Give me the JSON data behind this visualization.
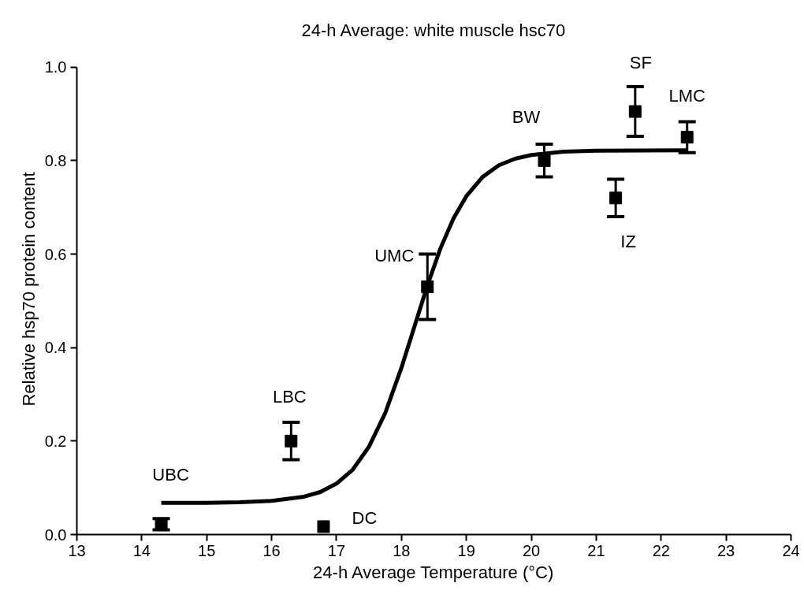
{
  "chart_data": {
    "type": "scatter",
    "title": "24-h Average: white muscle hsc70",
    "xlabel": "24-h Average Temperature (°C)",
    "ylabel": "Relative hsp70 protein content",
    "xlim": [
      13,
      24
    ],
    "xticks": [
      13,
      14,
      15,
      16,
      17,
      18,
      19,
      20,
      21,
      22,
      23,
      24
    ],
    "ylim": [
      0,
      1.0
    ],
    "yticks": [
      {
        "value": 0,
        "label": "0.0"
      },
      {
        "value": 0.2,
        "label": "0.2"
      },
      {
        "value": 0.4,
        "label": "0.4"
      },
      {
        "value": 0.6,
        "label": "0.6"
      },
      {
        "value": 0.8,
        "label": "0.8"
      },
      {
        "value": 1.0,
        "label": "1.0"
      }
    ],
    "grid": false,
    "marker": "square",
    "series": [
      {
        "color": "#000000",
        "x": [
          14.3,
          16.3,
          16.8,
          18.4,
          20.2,
          21.3,
          21.6,
          22.4
        ],
        "values": [
          0.022,
          0.2,
          0.017,
          0.53,
          0.8,
          0.72,
          0.905,
          0.85
        ],
        "errors": [
          0.012,
          0.04,
          null,
          0.07,
          0.035,
          0.04,
          0.053,
          0.033
        ]
      },
      {
        "type": "line",
        "color": "#000000",
        "line_style": "solid",
        "marker": "none",
        "x": [
          14.3,
          15,
          15.5,
          16,
          16.5,
          16.75,
          17,
          17.25,
          17.5,
          17.75,
          18,
          18.2,
          18.4,
          18.6,
          18.8,
          19,
          19.25,
          19.5,
          19.75,
          20,
          20.5,
          21,
          22.4
        ],
        "values": [
          0.068,
          0.068,
          0.069,
          0.072,
          0.081,
          0.091,
          0.109,
          0.139,
          0.188,
          0.26,
          0.357,
          0.445,
          0.533,
          0.612,
          0.676,
          0.724,
          0.765,
          0.79,
          0.804,
          0.812,
          0.819,
          0.821,
          0.822
        ]
      }
    ],
    "annotations": [
      {
        "text": "UBC",
        "x": 14.3,
        "y": 0.022
      },
      {
        "text": "LBC",
        "x": 16.3,
        "y": 0.2
      },
      {
        "text": "DC",
        "x": 16.8,
        "y": 0.017
      },
      {
        "text": "UMC",
        "x": 18.4,
        "y": 0.53
      },
      {
        "text": "BW",
        "x": 20.2,
        "y": 0.8
      },
      {
        "text": "IZ",
        "x": 21.3,
        "y": 0.72
      },
      {
        "text": "SF",
        "x": 21.6,
        "y": 0.905
      },
      {
        "text": "LMC",
        "x": 22.4,
        "y": 0.85
      }
    ]
  }
}
